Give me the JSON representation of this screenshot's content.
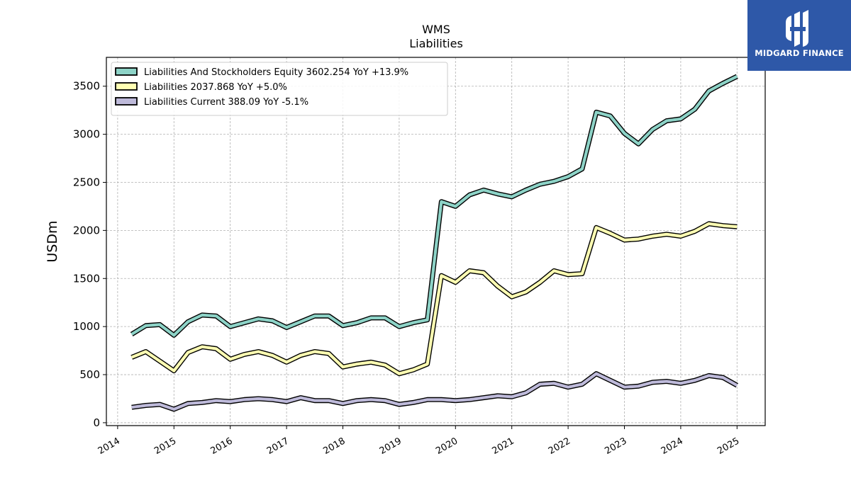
{
  "chart_data": {
    "type": "line",
    "title": "WMS",
    "subtitle": "Liabilities",
    "ylabel": "USDm",
    "xlabel": "",
    "xlim": [
      2013.8,
      2025.5
    ],
    "ylim": [
      -30,
      3800
    ],
    "yticks": [
      0,
      500,
      1000,
      1500,
      2000,
      2500,
      3000,
      3500
    ],
    "xticks": [
      "2014",
      "2015",
      "2016",
      "2017",
      "2018",
      "2019",
      "2020",
      "2021",
      "2022",
      "2023",
      "2024",
      "2025"
    ],
    "grid": true,
    "legend_position": "top-left",
    "series": [
      {
        "name": "Liabilities And Stockholders Equity",
        "legend_label": "Liabilities And Stockholders Equity  3602.254 YoY +13.9%",
        "color": "#8dd3c7",
        "x": [
          2014.25,
          2014.5,
          2014.75,
          2015.0,
          2015.25,
          2015.5,
          2015.75,
          2016.0,
          2016.25,
          2016.5,
          2016.75,
          2017.0,
          2017.25,
          2017.5,
          2017.75,
          2018.0,
          2018.25,
          2018.5,
          2018.75,
          2019.0,
          2019.25,
          2019.5,
          2019.75,
          2020.0,
          2020.25,
          2020.5,
          2020.75,
          2021.0,
          2021.25,
          2021.5,
          2021.75,
          2022.0,
          2022.25,
          2022.5,
          2022.75,
          2023.0,
          2023.25,
          2023.5,
          2023.75,
          2024.0,
          2024.25,
          2024.5,
          2024.75,
          2025.0
        ],
        "values": [
          920,
          1010,
          1020,
          910,
          1050,
          1120,
          1110,
          1000,
          1040,
          1080,
          1060,
          990,
          1050,
          1110,
          1110,
          1010,
          1040,
          1090,
          1090,
          1000,
          1040,
          1070,
          2300,
          2250,
          2370,
          2420,
          2380,
          2350,
          2420,
          2480,
          2510,
          2560,
          2640,
          3230,
          3190,
          3010,
          2900,
          3050,
          3140,
          3160,
          3260,
          3450,
          3530,
          3602
        ]
      },
      {
        "name": "Liabilities",
        "legend_label": "Liabilities  2037.868 YoY +5.0%",
        "color": "#ffffb3",
        "x": [
          2014.25,
          2014.5,
          2014.75,
          2015.0,
          2015.25,
          2015.5,
          2015.75,
          2016.0,
          2016.25,
          2016.5,
          2016.75,
          2017.0,
          2017.25,
          2017.5,
          2017.75,
          2018.0,
          2018.25,
          2018.5,
          2018.75,
          2019.0,
          2019.25,
          2019.5,
          2019.75,
          2020.0,
          2020.25,
          2020.5,
          2020.75,
          2021.0,
          2021.25,
          2021.5,
          2021.75,
          2022.0,
          2022.25,
          2022.5,
          2022.75,
          2023.0,
          2023.25,
          2023.5,
          2023.75,
          2024.0,
          2024.25,
          2024.5,
          2024.75,
          2025.0
        ],
        "values": [
          680,
          740,
          640,
          540,
          730,
          790,
          770,
          660,
          710,
          740,
          700,
          630,
          700,
          740,
          720,
          580,
          610,
          630,
          600,
          510,
          550,
          610,
          1530,
          1460,
          1580,
          1560,
          1420,
          1310,
          1360,
          1460,
          1580,
          1540,
          1550,
          2030,
          1970,
          1900,
          1910,
          1940,
          1960,
          1940,
          1990,
          2070,
          2050,
          2038
        ]
      },
      {
        "name": "Liabilities Current",
        "legend_label": "Liabilities Current  388.09 YoY -5.1%",
        "color": "#bebada",
        "x": [
          2014.25,
          2014.5,
          2014.75,
          2015.0,
          2015.25,
          2015.5,
          2015.75,
          2016.0,
          2016.25,
          2016.5,
          2016.75,
          2017.0,
          2017.25,
          2017.5,
          2017.75,
          2018.0,
          2018.25,
          2018.5,
          2018.75,
          2019.0,
          2019.25,
          2019.5,
          2019.75,
          2020.0,
          2020.25,
          2020.5,
          2020.75,
          2021.0,
          2021.25,
          2021.5,
          2021.75,
          2022.0,
          2022.25,
          2022.5,
          2022.75,
          2023.0,
          2023.25,
          2023.5,
          2023.75,
          2024.0,
          2024.25,
          2024.5,
          2024.75,
          2025.0
        ],
        "values": [
          160,
          180,
          190,
          140,
          200,
          210,
          230,
          220,
          240,
          250,
          240,
          220,
          260,
          230,
          230,
          200,
          230,
          240,
          230,
          190,
          210,
          240,
          240,
          230,
          240,
          260,
          280,
          270,
          310,
          400,
          410,
          370,
          400,
          510,
          440,
          370,
          380,
          420,
          430,
          410,
          440,
          490,
          470,
          388
        ]
      }
    ]
  },
  "logo": {
    "text": "MIDGARD FINANCE",
    "background": "#2e58a8"
  }
}
